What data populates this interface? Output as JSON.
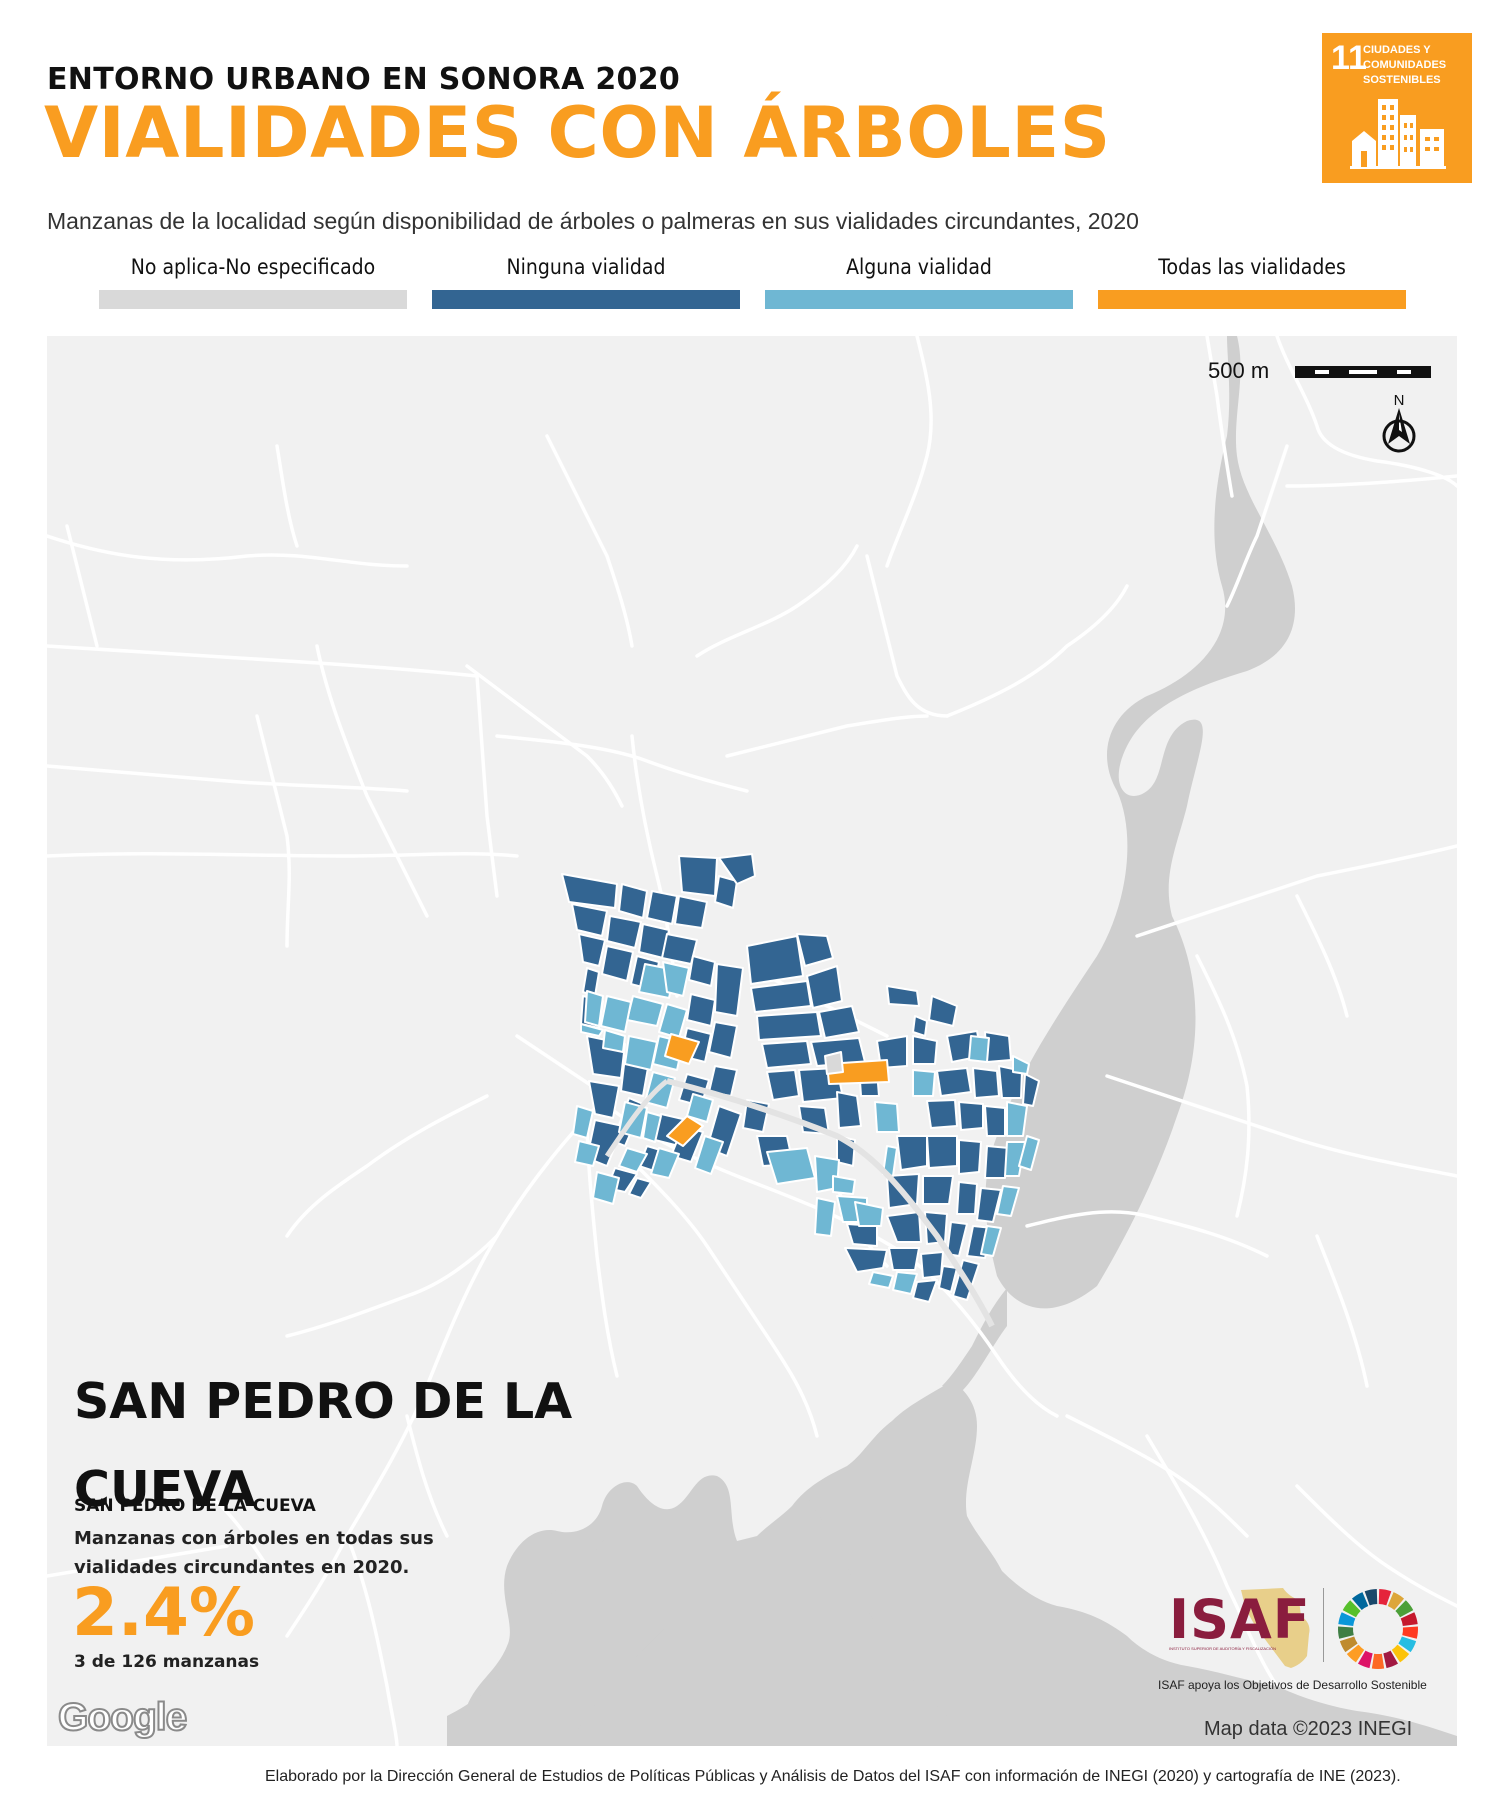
{
  "header": {
    "supertitle": "ENTORNO URBANO EN SONORA 2020",
    "title": "VIALIDADES CON ÁRBOLES",
    "subtitle": "Manzanas de la localidad según disponibilidad de árboles o palmeras en sus vialidades circundantes, 2020"
  },
  "sdg_badge": {
    "number": "11",
    "text": "CIUDADES Y COMUNIDADES SOSTENIBLES",
    "color": "#f99d20"
  },
  "legend": [
    {
      "label": "No aplica-No especificado",
      "color": "#d9d9d9"
    },
    {
      "label": "Ninguna vialidad",
      "color": "#336592"
    },
    {
      "label": "Alguna vialidad",
      "color": "#6fb7d3"
    },
    {
      "label": "Todas las vialidades",
      "color": "#f99d20"
    }
  ],
  "map": {
    "scale_label": "500 m",
    "north_label": "N",
    "google_logo": "Google",
    "attribution": "Map data ©2023 INEGI",
    "water_color": "#cfcfcf",
    "land_color": "#f1f1f1",
    "road_color": "#ffffff"
  },
  "stats": {
    "place_name": "SAN PEDRO DE LA CUEVA",
    "municipality": "SAN PEDRO DE LA CUEVA",
    "description": "Manzanas con árboles en todas sus vialidades circundantes en 2020.",
    "percentage": "2.4%",
    "count": "3 de 126 manzanas"
  },
  "isaf": {
    "logo_text": "ISAF",
    "institution": "INSTITUTO SUPERIOR DE AUDITORÍA Y FISCALIZACIÓN",
    "caption": "ISAF apoya los Objetivos de Desarrollo Sostenible"
  },
  "footer": "Elaborado por la Dirección General de Estudios de Políticas Públicas y Análisis de Datos del ISAF con información de INEGI (2020) y cartografía de INE (2023)."
}
